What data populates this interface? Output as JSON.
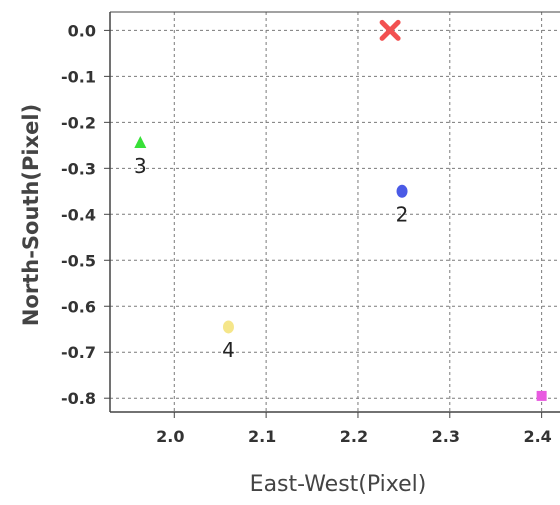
{
  "chart_data": {
    "type": "scatter",
    "xlabel": "East-West(Pixel)",
    "ylabel": "North-South(Pixel)",
    "xlim": [
      1.93,
      2.42
    ],
    "ylim": [
      -0.83,
      0.04
    ],
    "x_ticks": [
      "2.0",
      "2.1",
      "2.2",
      "2.3",
      "2.4"
    ],
    "x_tick_values": [
      2.0,
      2.1,
      2.2,
      2.3,
      2.4
    ],
    "y_ticks": [
      "0.0",
      "-0.1",
      "-0.2",
      "-0.3",
      "-0.4",
      "-0.5",
      "-0.6",
      "-0.7",
      "-0.8"
    ],
    "y_tick_values": [
      0.0,
      -0.1,
      -0.2,
      -0.3,
      -0.4,
      -0.5,
      -0.6,
      -0.7,
      -0.8
    ],
    "grid": true,
    "points": [
      {
        "label": "",
        "x": 2.235,
        "y": 0.0,
        "marker": "x",
        "color": "#f25050"
      },
      {
        "label": "2",
        "x": 2.248,
        "y": -0.35,
        "marker": "circle",
        "color": "#4a5ae6"
      },
      {
        "label": "3",
        "x": 1.963,
        "y": -0.245,
        "marker": "triangle",
        "color": "#38e038"
      },
      {
        "label": "4",
        "x": 2.059,
        "y": -0.645,
        "marker": "circle",
        "color": "#f5e68a"
      },
      {
        "label": "",
        "x": 2.4,
        "y": -0.795,
        "marker": "square",
        "color": "#e85ae0"
      }
    ],
    "colors": {
      "axis": "#444444",
      "grid": "#7a7a7a",
      "tick_text": "#333333",
      "label_text": "#444444",
      "point_label": "#222222"
    }
  }
}
